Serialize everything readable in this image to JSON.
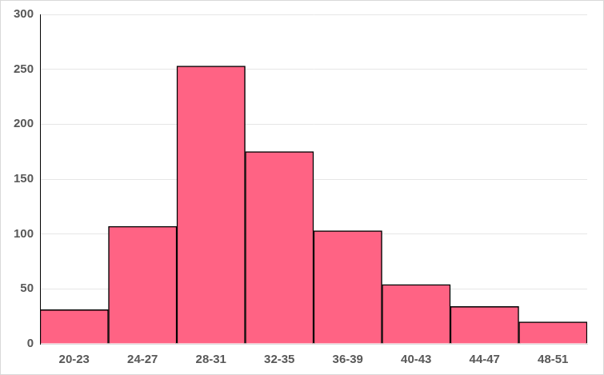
{
  "chart_data": {
    "type": "bar",
    "categories": [
      "20-23",
      "24-27",
      "28-31",
      "32-35",
      "36-39",
      "40-43",
      "44-47",
      "48-51"
    ],
    "values": [
      31,
      107,
      253,
      175,
      103,
      54,
      34,
      20
    ],
    "color": "#ff6384",
    "ylim": [
      0,
      300
    ],
    "yticks": [
      0,
      50,
      100,
      150,
      200,
      250,
      300
    ],
    "grid": true
  }
}
